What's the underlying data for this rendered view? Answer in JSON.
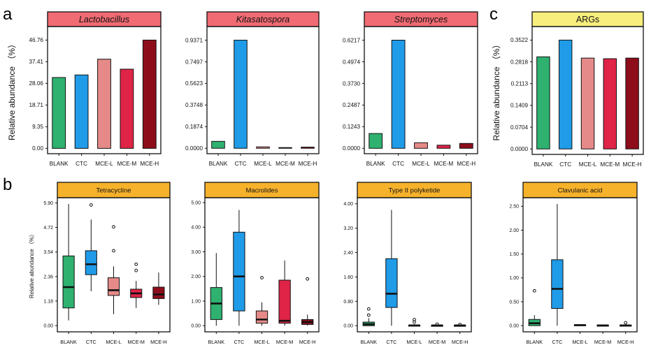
{
  "panel_letters": [
    "a",
    "b",
    "c"
  ],
  "colors": {
    "BLANK": "#2fb16f",
    "CTC": "#1f9be8",
    "MCE-L": "#e58a88",
    "MCE-M": "#df2447",
    "MCE-H": "#8e0d1b",
    "header_red": "#f06b73",
    "header_yellow": "#f7ee7e",
    "header_orange": "#f7b22b"
  },
  "chart_data": [
    {
      "type": "bar",
      "panel": "a",
      "title": "Lactobacillus",
      "title_italic": true,
      "header": "red",
      "ylabel": "Relative abundance （%）",
      "categories": [
        "BLANK",
        "CTC",
        "MCE-L",
        "MCE-M",
        "MCE-H"
      ],
      "values": [
        30.6,
        31.7,
        38.5,
        34.2,
        46.76
      ],
      "yticks": [
        "0.00",
        "9.35",
        "18.71",
        "28.06",
        "37.41",
        "46.76"
      ],
      "ylim": [
        -2.3,
        52.6
      ]
    },
    {
      "type": "bar",
      "panel": "a",
      "title": "Kitasatospora",
      "title_italic": true,
      "header": "red",
      "ylabel": "",
      "categories": [
        "BLANK",
        "CTC",
        "MCE-L",
        "MCE-M",
        "MCE-H"
      ],
      "values": [
        0.06,
        0.9371,
        0.012,
        0.006,
        0.01
      ],
      "yticks": [
        "0.0000",
        "0.1874",
        "0.3748",
        "0.5623",
        "0.7497",
        "0.9371"
      ],
      "ylim": [
        -0.047,
        1.055
      ]
    },
    {
      "type": "bar",
      "panel": "a",
      "title": "Streptomyces",
      "title_italic": true,
      "header": "red",
      "ylabel": "",
      "categories": [
        "BLANK",
        "CTC",
        "MCE-L",
        "MCE-M",
        "MCE-H"
      ],
      "values": [
        0.085,
        0.6217,
        0.032,
        0.018,
        0.028
      ],
      "yticks": [
        "0.0000",
        "0.1243",
        "0.2487",
        "0.3730",
        "0.4974",
        "0.6217"
      ],
      "ylim": [
        -0.031,
        0.7
      ]
    },
    {
      "type": "bar",
      "panel": "c",
      "title": "ARGs",
      "title_italic": false,
      "header": "yellow",
      "ylabel": "Relative abundance （%）",
      "categories": [
        "BLANK",
        "CTC",
        "MCE-L",
        "MCE-M",
        "MCE-H"
      ],
      "values": [
        0.298,
        0.3522,
        0.294,
        0.292,
        0.294
      ],
      "yticks": [
        "0.0000",
        "0.0704",
        "0.1409",
        "0.2113",
        "0.2818",
        "0.3522"
      ],
      "ylim": [
        -0.0176,
        0.396
      ]
    },
    {
      "type": "box",
      "panel": "b",
      "title": "Tetracycline",
      "header": "orange",
      "ylabel": "Relative abundance （%）",
      "categories": [
        "BLANK",
        "CTC",
        "MCE-L",
        "MCE-M",
        "MCE-H"
      ],
      "boxes": [
        {
          "whisker_low": 0.25,
          "q1": 0.85,
          "median": 1.85,
          "q3": 3.35,
          "whisker_high": 5.85,
          "outliers": []
        },
        {
          "whisker_low": 1.65,
          "q1": 2.45,
          "median": 2.95,
          "q3": 3.6,
          "whisker_high": 5.1,
          "outliers": [
            5.8
          ]
        },
        {
          "whisker_low": 0.55,
          "q1": 1.45,
          "median": 1.7,
          "q3": 2.3,
          "whisker_high": 2.85,
          "outliers": [
            3.6,
            4.75
          ]
        },
        {
          "whisker_low": 0.85,
          "q1": 1.35,
          "median": 1.55,
          "q3": 1.75,
          "whisker_high": 2.15,
          "outliers": [
            2.65,
            2.95
          ]
        },
        {
          "whisker_low": 1.0,
          "q1": 1.3,
          "median": 1.5,
          "q3": 1.85,
          "whisker_high": 2.55,
          "outliers": []
        }
      ],
      "yticks": [
        "0.00",
        "1.18",
        "2.36",
        "3.54",
        "4.72",
        "5.90"
      ],
      "ylim": [
        -0.3,
        6.15
      ]
    },
    {
      "type": "box",
      "panel": "b",
      "title": "Macrolides",
      "header": "orange",
      "ylabel": "",
      "categories": [
        "BLANK",
        "CTC",
        "MCE-L",
        "MCE-M",
        "MCE-H"
      ],
      "boxes": [
        {
          "whisker_low": 0.0,
          "q1": 0.25,
          "median": 0.9,
          "q3": 1.55,
          "whisker_high": 2.95,
          "outliers": []
        },
        {
          "whisker_low": 0.0,
          "q1": 0.6,
          "median": 2.0,
          "q3": 3.8,
          "whisker_high": 4.7,
          "outliers": []
        },
        {
          "whisker_low": 0.0,
          "q1": 0.1,
          "median": 0.25,
          "q3": 0.6,
          "whisker_high": 0.95,
          "outliers": [
            1.95
          ]
        },
        {
          "whisker_low": 0.0,
          "q1": 0.1,
          "median": 0.2,
          "q3": 1.85,
          "whisker_high": 2.65,
          "outliers": []
        },
        {
          "whisker_low": 0.0,
          "q1": 0.05,
          "median": 0.15,
          "q3": 0.25,
          "whisker_high": 0.45,
          "outliers": [
            1.9
          ]
        }
      ],
      "yticks": [
        "0.00",
        "1.00",
        "2.00",
        "3.00",
        "4.00",
        "5.00"
      ],
      "ylim": [
        -0.25,
        5.2
      ]
    },
    {
      "type": "box",
      "panel": "b",
      "title": "Type II polyketide",
      "header": "orange",
      "ylabel": "",
      "categories": [
        "BLANK",
        "CTC",
        "MCE-L",
        "MCE-M",
        "MCE-H"
      ],
      "boxes": [
        {
          "whisker_low": 0.0,
          "q1": 0.0,
          "median": 0.05,
          "q3": 0.12,
          "whisker_high": 0.25,
          "outliers": [
            0.35,
            0.55
          ]
        },
        {
          "whisker_low": 0.0,
          "q1": 0.6,
          "median": 1.05,
          "q3": 2.2,
          "whisker_high": 3.8,
          "outliers": []
        },
        {
          "whisker_low": 0.0,
          "q1": 0.0,
          "median": 0.01,
          "q3": 0.02,
          "whisker_high": 0.05,
          "outliers": [
            0.12,
            0.2
          ]
        },
        {
          "whisker_low": 0.0,
          "q1": 0.0,
          "median": 0.01,
          "q3": 0.015,
          "whisker_high": 0.02,
          "outliers": [
            0.05
          ]
        },
        {
          "whisker_low": 0.0,
          "q1": 0.0,
          "median": 0.01,
          "q3": 0.015,
          "whisker_high": 0.02,
          "outliers": [
            0.04
          ]
        }
      ],
      "yticks": [
        "0.00",
        "0.80",
        "1.60",
        "2.40",
        "3.20",
        "4.00"
      ],
      "ylim": [
        -0.2,
        4.2
      ]
    },
    {
      "type": "box",
      "panel": "b",
      "title": "Clavulanic acid",
      "header": "orange",
      "ylabel": "",
      "categories": [
        "BLANK",
        "CTC",
        "MCE-L",
        "MCE-M",
        "MCE-H"
      ],
      "boxes": [
        {
          "whisker_low": 0.0,
          "q1": 0.0,
          "median": 0.05,
          "q3": 0.13,
          "whisker_high": 0.22,
          "outliers": [
            0.73
          ]
        },
        {
          "whisker_low": 0.0,
          "q1": 0.36,
          "median": 0.77,
          "q3": 1.38,
          "whisker_high": 2.55,
          "outliers": []
        },
        {
          "whisker_low": 0.0,
          "q1": 0.0,
          "median": 0.01,
          "q3": 0.02,
          "whisker_high": 0.03,
          "outliers": []
        },
        {
          "whisker_low": 0.0,
          "q1": 0.0,
          "median": 0.005,
          "q3": 0.01,
          "whisker_high": 0.02,
          "outliers": []
        },
        {
          "whisker_low": 0.0,
          "q1": 0.0,
          "median": 0.005,
          "q3": 0.01,
          "whisker_high": 0.02,
          "outliers": [
            0.06
          ]
        }
      ],
      "yticks": [
        "0.00",
        "0.50",
        "1.00",
        "1.50",
        "2.00",
        "2.50"
      ],
      "ylim": [
        -0.13,
        2.68
      ]
    }
  ]
}
